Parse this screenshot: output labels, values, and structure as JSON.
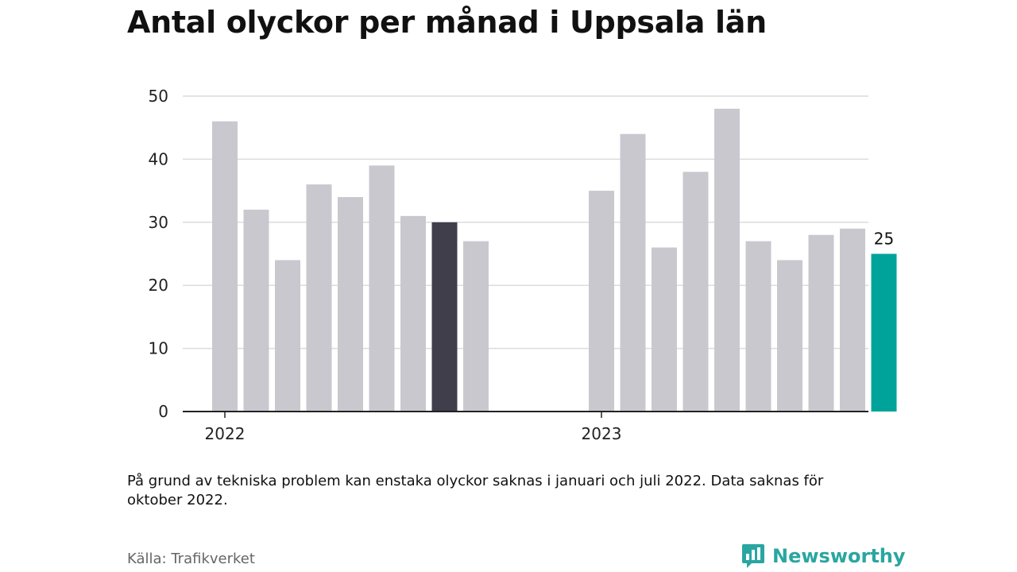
{
  "title": "Antal olyckor per månad i Uppsala län",
  "note": "På grund av tekniska problem kan enstaka olyckor saknas i januari och juli 2022. Data saknas för oktober 2022.",
  "source": "Källa: Trafikverket",
  "brand": {
    "name": "Newsworthy",
    "icon": "newsworthy-logo-icon",
    "color": "#2aa6a0"
  },
  "colors": {
    "default_bar": "#c9c8cf",
    "highlight_bar": "#403e4b",
    "latest_bar": "#00a39a",
    "grid": "#dcdcdc",
    "axis": "#222222"
  },
  "chart_data": {
    "type": "bar",
    "title": "Antal olyckor per månad i Uppsala län",
    "xlabel": "",
    "ylabel": "",
    "ylim": [
      0,
      50
    ],
    "yticks": [
      0,
      10,
      20,
      30,
      40,
      50
    ],
    "grid": true,
    "x_tick_labels": [
      {
        "label": "2022",
        "at": "2022-01"
      },
      {
        "label": "2023",
        "at": "2023-01"
      }
    ],
    "categories": [
      "2022-01",
      "2022-02",
      "2022-03",
      "2022-04",
      "2022-05",
      "2022-06",
      "2022-07",
      "2022-08",
      "2022-09",
      "2022-10",
      "2022-11",
      "2022-12",
      "2023-01",
      "2023-02",
      "2023-03",
      "2023-04",
      "2023-05",
      "2023-06",
      "2023-07",
      "2023-08",
      "2023-09",
      "2023-10"
    ],
    "values": [
      46,
      32,
      24,
      36,
      34,
      39,
      31,
      30,
      27,
      null,
      null,
      null,
      35,
      44,
      26,
      38,
      48,
      27,
      24,
      28,
      29,
      25
    ],
    "highlight": {
      "2022-08": "dark",
      "2023-10": "latest"
    },
    "data_labels": [
      {
        "category": "2023-10",
        "text": "25"
      }
    ]
  }
}
